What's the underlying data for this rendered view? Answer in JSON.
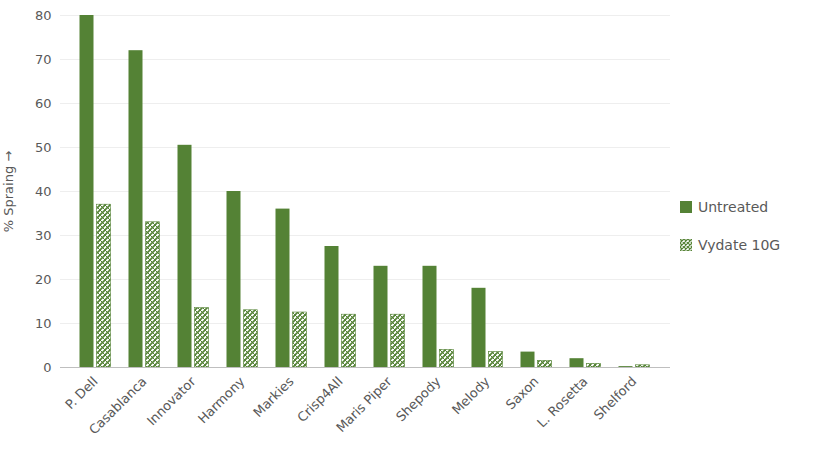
{
  "chart_data": {
    "type": "bar",
    "categories": [
      "P. Dell",
      "Casablanca",
      "Innovator",
      "Harmony",
      "Markies",
      "Crisp4All",
      "Maris Piper",
      "Shepody",
      "Melody",
      "Saxon",
      "L. Rosetta",
      "Shelford"
    ],
    "series": [
      {
        "name": "Untreated",
        "color": "#548235",
        "values": [
          80,
          72,
          50.5,
          40,
          36,
          27.5,
          23,
          23,
          18,
          3.5,
          2,
          0.2
        ]
      },
      {
        "name": "Vydate 10G",
        "color": "#548235",
        "values": [
          37,
          33,
          13.5,
          13,
          12.5,
          12,
          12,
          4,
          3.5,
          1.5,
          0.8,
          0.5
        ]
      }
    ],
    "y_label": "% Spraing",
    "ylim": [
      0,
      80
    ],
    "yticks": [
      0,
      10,
      20,
      30,
      40,
      50,
      60,
      70,
      80
    ],
    "grid": true,
    "legend": "right"
  }
}
